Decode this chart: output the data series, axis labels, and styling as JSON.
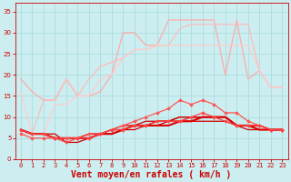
{
  "xlabel": "Vent moyen/en rafales ( km/h )",
  "xlim": [
    -0.5,
    23.5
  ],
  "ylim": [
    0,
    37
  ],
  "yticks": [
    0,
    5,
    10,
    15,
    20,
    25,
    30,
    35
  ],
  "xticks": [
    0,
    1,
    2,
    3,
    4,
    5,
    6,
    7,
    8,
    9,
    10,
    11,
    12,
    13,
    14,
    15,
    16,
    17,
    18,
    19,
    20,
    21,
    22,
    23
  ],
  "bg_color": "#cceef0",
  "grid_color": "#aadddd",
  "lines": [
    {
      "y": [
        19,
        16,
        14,
        14,
        19,
        15,
        15,
        16,
        20,
        30,
        30,
        27,
        27,
        33,
        33,
        33,
        33,
        33,
        20,
        33,
        19,
        21,
        17,
        17
      ],
      "color": "#ffaaaa",
      "marker": null,
      "lw": 0.9,
      "zorder": 2
    },
    {
      "y": [
        6,
        6,
        14,
        14,
        19,
        15,
        19,
        22,
        23,
        24,
        26,
        26,
        27,
        27,
        31,
        32,
        32,
        32,
        32,
        32,
        32,
        21,
        17,
        17
      ],
      "color": "#ffbbbb",
      "marker": null,
      "lw": 0.9,
      "zorder": 2
    },
    {
      "y": [
        16,
        6,
        6,
        13,
        13,
        15,
        15,
        19,
        20,
        24,
        26,
        26,
        27,
        27,
        27,
        27,
        27,
        27,
        27,
        27,
        27,
        21,
        17,
        17
      ],
      "color": "#ffcccc",
      "marker": null,
      "lw": 0.9,
      "zorder": 2
    },
    {
      "y": [
        6,
        5,
        5,
        5,
        5,
        5,
        6,
        6,
        7,
        8,
        9,
        10,
        11,
        12,
        14,
        13,
        14,
        13,
        11,
        11,
        9,
        8,
        7,
        7
      ],
      "color": "#ff5555",
      "marker": "D",
      "markersize": 1.8,
      "lw": 0.9,
      "zorder": 4
    },
    {
      "y": [
        7,
        6,
        6,
        6,
        4,
        4,
        5,
        6,
        6,
        7,
        7,
        8,
        8,
        9,
        10,
        10,
        10,
        10,
        10,
        8,
        8,
        8,
        7,
        7
      ],
      "color": "#cc0000",
      "marker": null,
      "lw": 0.9,
      "zorder": 3
    },
    {
      "y": [
        7,
        6,
        6,
        5,
        5,
        5,
        5,
        6,
        7,
        7,
        8,
        8,
        9,
        9,
        9,
        10,
        10,
        10,
        10,
        8,
        8,
        8,
        7,
        7
      ],
      "color": "#cc0000",
      "marker": null,
      "lw": 0.9,
      "zorder": 3
    },
    {
      "y": [
        7,
        6,
        6,
        5,
        5,
        5,
        6,
        6,
        7,
        8,
        8,
        9,
        9,
        9,
        10,
        10,
        10,
        10,
        10,
        8,
        8,
        8,
        7,
        7
      ],
      "color": "#cc0000",
      "marker": null,
      "lw": 0.9,
      "zorder": 3
    },
    {
      "y": [
        7,
        6,
        6,
        5,
        5,
        5,
        6,
        6,
        7,
        7,
        8,
        8,
        9,
        9,
        9,
        9,
        9,
        9,
        9,
        8,
        7,
        7,
        7,
        7
      ],
      "color": "#cc0000",
      "marker": null,
      "lw": 0.9,
      "zorder": 3
    },
    {
      "y": [
        7,
        6,
        6,
        5,
        5,
        5,
        5,
        6,
        6,
        7,
        8,
        8,
        8,
        8,
        9,
        9,
        10,
        10,
        10,
        8,
        8,
        7,
        7,
        7
      ],
      "color": "#dd0000",
      "marker": null,
      "lw": 1.5,
      "zorder": 3
    },
    {
      "y": [
        7,
        6,
        6,
        5,
        4,
        5,
        5,
        6,
        7,
        7,
        8,
        8,
        9,
        9,
        9,
        10,
        11,
        10,
        9,
        8,
        8,
        8,
        7,
        7
      ],
      "color": "#ff4444",
      "marker": "D",
      "markersize": 1.8,
      "lw": 0.9,
      "zorder": 4
    }
  ],
  "arrow_color": "#cc0000",
  "tick_color": "#cc0000",
  "tick_fontsize": 5,
  "label_fontsize": 7
}
